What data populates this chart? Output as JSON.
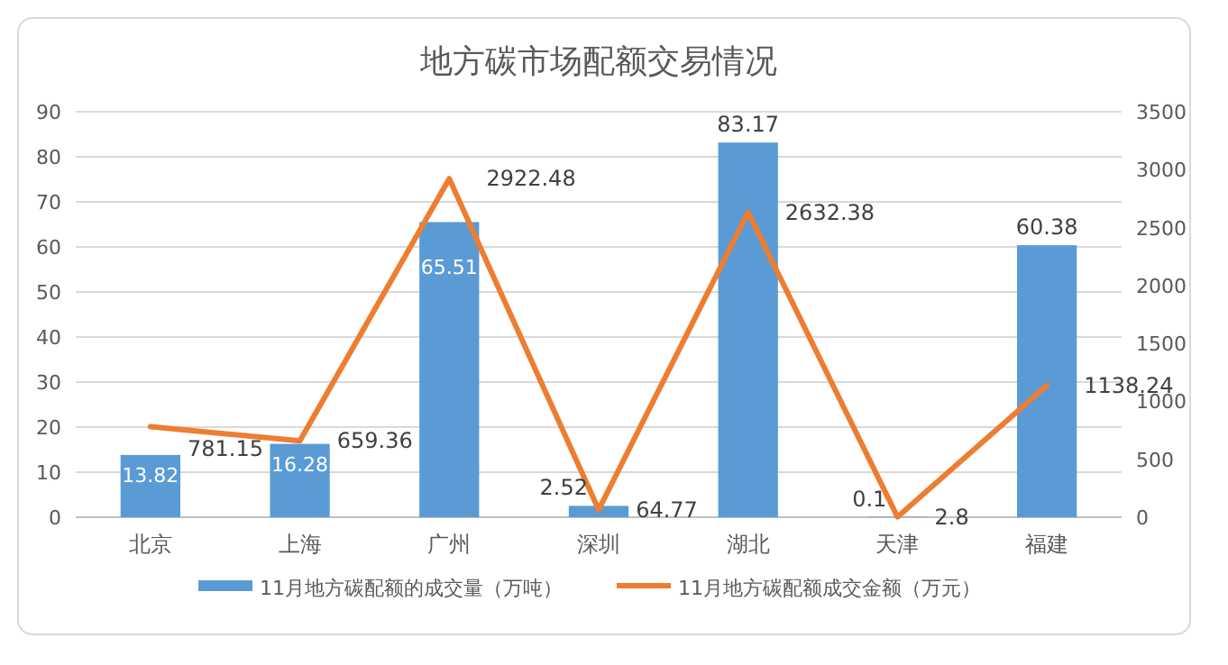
{
  "chart_data": {
    "type": "bar",
    "title": "地方碳市场配额交易情况",
    "categories": [
      "北京",
      "上海",
      "广州",
      "深圳",
      "湖北",
      "天津",
      "福建"
    ],
    "series": [
      {
        "name": "11月地方碳配额的成交量（万吨）",
        "color": "#5b9bd5",
        "values": [
          13.82,
          16.28,
          65.51,
          2.52,
          83.17,
          0.1,
          60.38
        ]
      },
      {
        "name": "11月地方碳配额成交金额（万元）",
        "type": "line",
        "axis": "y2",
        "color": "#ed7d31",
        "values": [
          781.15,
          659.36,
          2922.48,
          64.77,
          2632.38,
          2.8,
          1138.24
        ]
      }
    ],
    "ylim": [
      0,
      90
    ],
    "yticks": [
      0,
      10,
      20,
      30,
      40,
      50,
      60,
      70,
      80,
      90
    ],
    "y2lim": [
      0,
      3500
    ],
    "y2ticks": [
      0,
      500,
      1000,
      1500,
      2000,
      2500,
      3000,
      3500
    ],
    "grid": "y",
    "legend": "bottom",
    "data_labels": true,
    "marker": "none"
  }
}
